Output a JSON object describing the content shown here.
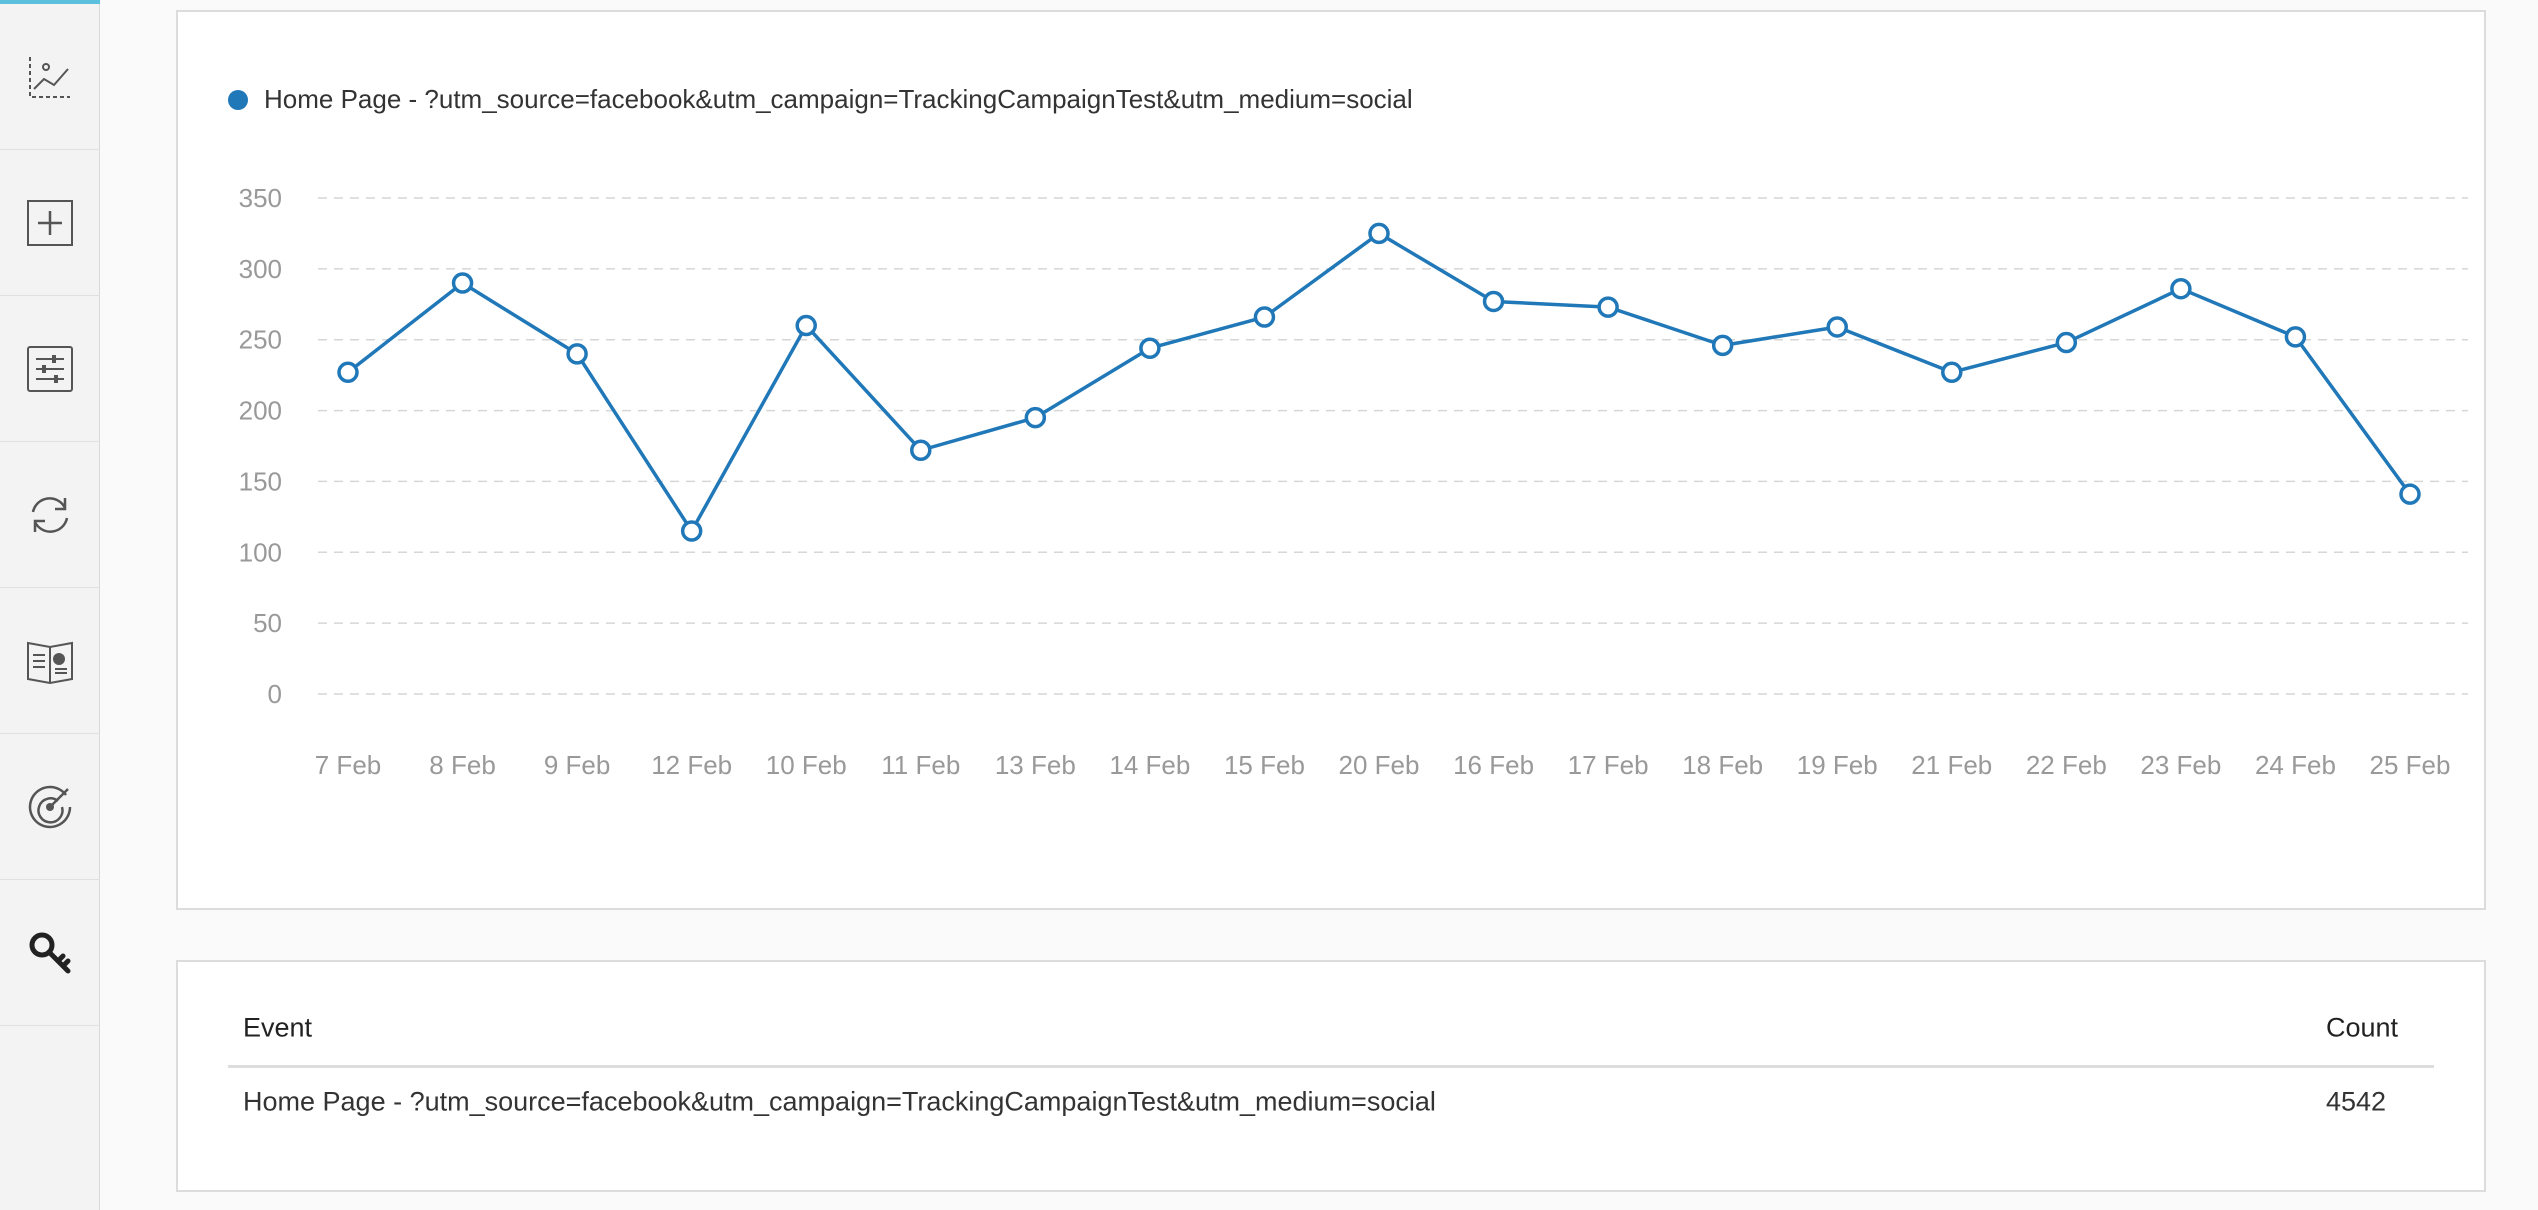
{
  "sidebar": {
    "items": [
      {
        "icon": "line-chart-icon"
      },
      {
        "icon": "add-icon"
      },
      {
        "icon": "sliders-icon"
      },
      {
        "icon": "refresh-icon"
      },
      {
        "icon": "book-icon"
      },
      {
        "icon": "target-icon"
      },
      {
        "icon": "key-icon"
      }
    ],
    "accent_color": "#5bc0de"
  },
  "chart": {
    "legend_label": "Home Page - ?utm_source=facebook&utm_campaign=TrackingCampaignTest&utm_medium=social",
    "series_color": "#2078b8"
  },
  "chart_data": {
    "type": "line",
    "title": "",
    "xlabel": "",
    "ylabel": "",
    "ylim": [
      0,
      350
    ],
    "yticks": [
      0,
      50,
      100,
      150,
      200,
      250,
      300,
      350
    ],
    "grid": true,
    "legend_position": "top-left",
    "categories": [
      "7 Feb",
      "8 Feb",
      "9 Feb",
      "12 Feb",
      "10 Feb",
      "11 Feb",
      "13 Feb",
      "14 Feb",
      "15 Feb",
      "20 Feb",
      "16 Feb",
      "17 Feb",
      "18 Feb",
      "19 Feb",
      "21 Feb",
      "22 Feb",
      "23 Feb",
      "24 Feb",
      "25 Feb"
    ],
    "series": [
      {
        "name": "Home Page - ?utm_source=facebook&utm_campaign=TrackingCampaignTest&utm_medium=social",
        "values": [
          227,
          290,
          240,
          115,
          260,
          172,
          195,
          244,
          266,
          325,
          277,
          273,
          246,
          259,
          227,
          248,
          286,
          252,
          141
        ]
      }
    ]
  },
  "table": {
    "headers": {
      "event": "Event",
      "count": "Count"
    },
    "rows": [
      {
        "event": "Home Page - ?utm_source=facebook&utm_campaign=TrackingCampaignTest&utm_medium=social",
        "count": "4542"
      }
    ]
  }
}
